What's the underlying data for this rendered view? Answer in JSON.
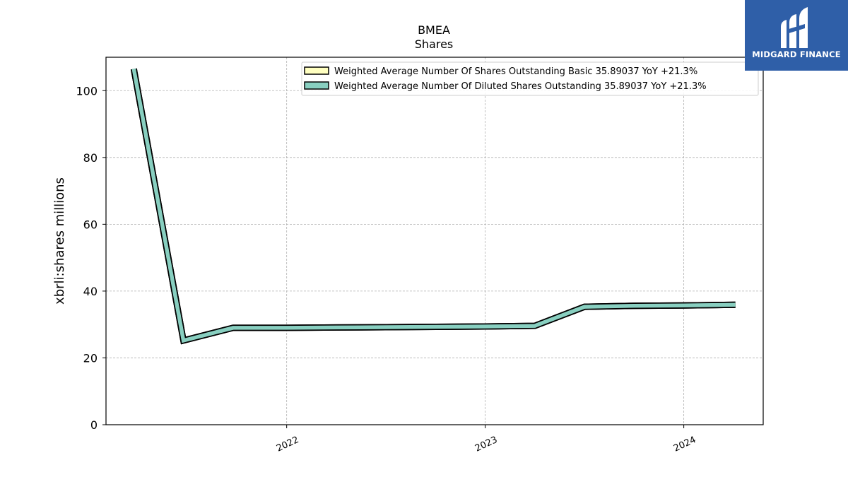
{
  "chart_data": {
    "type": "line",
    "title": "BMEA",
    "subtitle": "Shares",
    "ylabel": "xbrli:shares millions",
    "xlabel": "",
    "ylim": [
      0,
      110
    ],
    "xlim": [
      2021.09,
      2024.4
    ],
    "y_ticks": [
      0,
      20,
      40,
      60,
      80,
      100
    ],
    "x_ticks": [
      {
        "value": 2022.0,
        "label": "2022"
      },
      {
        "value": 2023.0,
        "label": "2023"
      },
      {
        "value": 2024.0,
        "label": "2024"
      }
    ],
    "grid": true,
    "legend_position": "top-right",
    "series": [
      {
        "name": "Weighted Average Number Of Shares Outstanding Basic",
        "legend_label": "Weighted Average Number Of Shares Outstanding Basic  35.89037 YoY +21.3%",
        "color": "#ffffc0",
        "x": [
          2021.23,
          2021.48,
          2021.73,
          2022.0,
          2022.25,
          2022.5,
          2022.75,
          2023.0,
          2023.25,
          2023.5,
          2023.75,
          2024.0,
          2024.26
        ],
        "y": [
          106.5,
          25.2,
          29.0,
          29.0,
          29.1,
          29.2,
          29.3,
          29.4,
          29.6,
          35.3,
          35.6,
          35.7,
          35.9
        ]
      },
      {
        "name": "Weighted Average Number Of Diluted Shares Outstanding",
        "legend_label": "Weighted Average Number Of Diluted Shares Outstanding  35.89037 YoY +21.3%",
        "color": "#88cfc0",
        "x": [
          2021.23,
          2021.48,
          2021.73,
          2022.0,
          2022.25,
          2022.5,
          2022.75,
          2023.0,
          2023.25,
          2023.5,
          2023.75,
          2024.0,
          2024.26
        ],
        "y": [
          106.5,
          25.2,
          29.0,
          29.0,
          29.1,
          29.2,
          29.3,
          29.4,
          29.6,
          35.3,
          35.6,
          35.7,
          35.9
        ]
      }
    ]
  },
  "logo": {
    "text": "MIDGARD FINANCE",
    "color": "#2f5fa8"
  }
}
